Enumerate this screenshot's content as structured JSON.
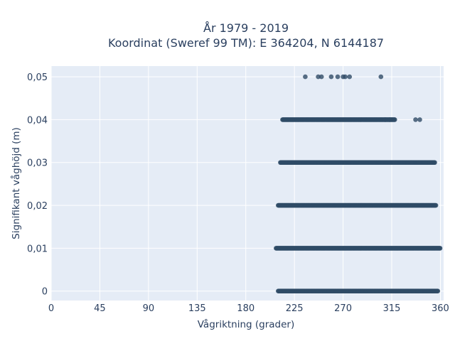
{
  "chart_data": {
    "type": "scatter",
    "title_line1": "År 1979 - 2019",
    "title_line2": "Koordinat (Sweref 99 TM): E 364204, N 6144187",
    "xlabel": "Vågriktning (grader)",
    "ylabel": "Signifikant våghöjd (m)",
    "xlim": [
      0,
      363
    ],
    "ylim": [
      -0.0022,
      0.0525
    ],
    "xticks": [
      0,
      45,
      90,
      135,
      180,
      225,
      270,
      315,
      360
    ],
    "xtick_labels": [
      "0",
      "45",
      "90",
      "135",
      "180",
      "225",
      "270",
      "315",
      "360"
    ],
    "yticks": [
      0,
      0.01,
      0.02,
      0.03,
      0.04,
      0.05
    ],
    "ytick_labels": [
      "0",
      "0,01",
      "0,02",
      "0,03",
      "0,04",
      "0,05"
    ],
    "grid": true,
    "colors": {
      "plot_bg": "#e5ecf6",
      "grid": "#ffffff",
      "marker": "#2f4b66",
      "text": "#2a3f5f"
    },
    "series": [
      {
        "bands": [
          {
            "y": 0.0,
            "x_min": 210,
            "x_max": 358
          },
          {
            "y": 0.01,
            "x_min": 208,
            "x_max": 360
          },
          {
            "y": 0.02,
            "x_min": 210,
            "x_max": 356
          },
          {
            "y": 0.03,
            "x_min": 212,
            "x_max": 355
          },
          {
            "y": 0.04,
            "x_min": 214,
            "x_max": 318
          }
        ],
        "points": [
          {
            "x": 309,
            "y": 0.04
          },
          {
            "x": 313,
            "y": 0.04
          },
          {
            "x": 337,
            "y": 0.04
          },
          {
            "x": 341,
            "y": 0.04
          },
          {
            "x": 318,
            "y": 0.03
          },
          {
            "x": 333,
            "y": 0.03
          },
          {
            "x": 340,
            "y": 0.03
          },
          {
            "x": 346,
            "y": 0.03
          },
          {
            "x": 350,
            "y": 0.03
          },
          {
            "x": 235,
            "y": 0.05
          },
          {
            "x": 247,
            "y": 0.05
          },
          {
            "x": 250,
            "y": 0.05
          },
          {
            "x": 259,
            "y": 0.05
          },
          {
            "x": 265,
            "y": 0.05
          },
          {
            "x": 270,
            "y": 0.05
          },
          {
            "x": 272,
            "y": 0.05
          },
          {
            "x": 276,
            "y": 0.05
          },
          {
            "x": 305,
            "y": 0.05
          }
        ]
      }
    ]
  }
}
